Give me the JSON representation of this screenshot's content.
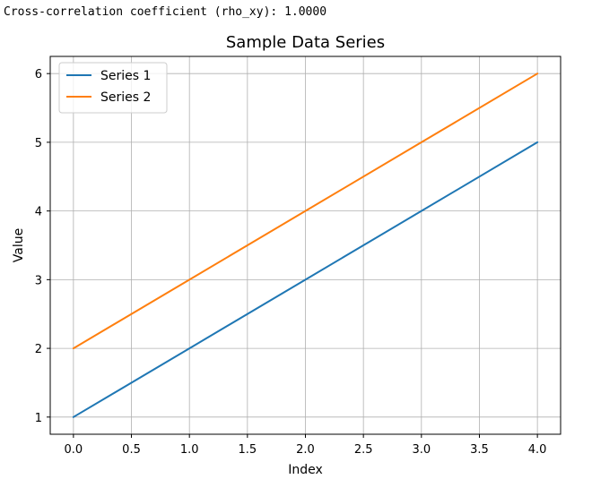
{
  "output": {
    "text": "Cross-correlation coefficient (rho_xy): 1.0000"
  },
  "chart_data": {
    "type": "line",
    "title": "Sample Data Series",
    "xlabel": "Index",
    "ylabel": "Value",
    "x": [
      0,
      1,
      2,
      3,
      4
    ],
    "series": [
      {
        "name": "Series 1",
        "values": [
          1,
          2,
          3,
          4,
          5
        ],
        "color": "#1f77b4"
      },
      {
        "name": "Series 2",
        "values": [
          2,
          3,
          4,
          5,
          6
        ],
        "color": "#ff7f0e"
      }
    ],
    "xlim": [
      -0.2,
      4.2
    ],
    "ylim": [
      0.75,
      6.25
    ],
    "xticks": [
      "0.0",
      "0.5",
      "1.0",
      "1.5",
      "2.0",
      "2.5",
      "3.0",
      "3.5",
      "4.0"
    ],
    "yticks": [
      "1",
      "2",
      "3",
      "4",
      "5",
      "6"
    ],
    "grid": true,
    "legend": "upper-left"
  }
}
